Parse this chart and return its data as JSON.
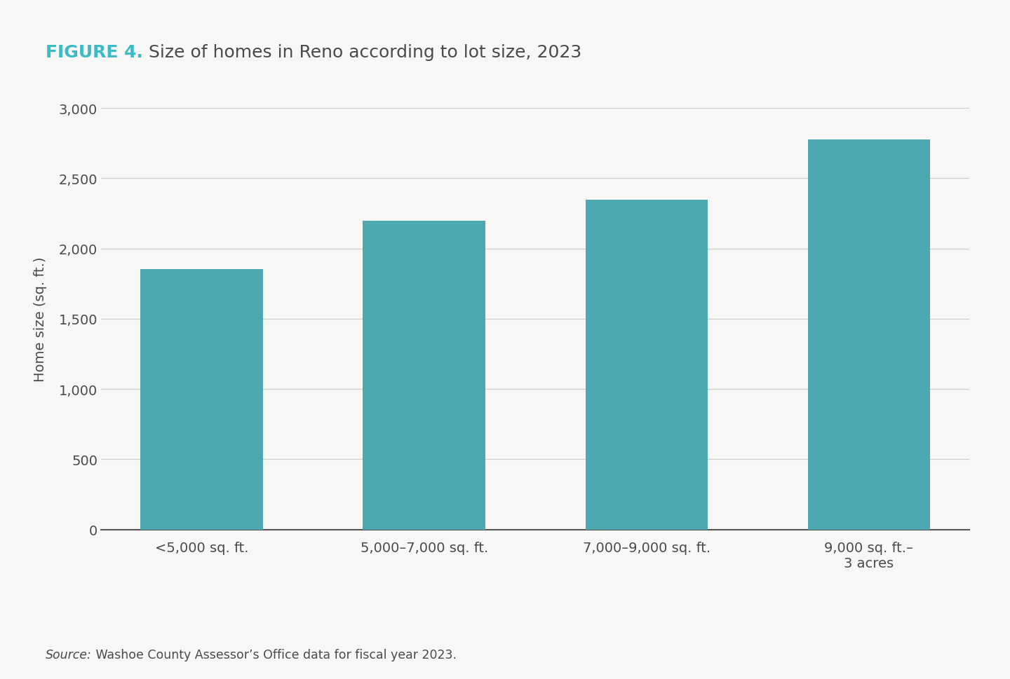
{
  "categories": [
    "<5,000 sq. ft.",
    "5,000–7,000 sq. ft.",
    "7,000–9,000 sq. ft.",
    "9,000 sq. ft.–\n3 acres"
  ],
  "values": [
    1855,
    2200,
    2350,
    2775
  ],
  "bar_color": "#4da8b0",
  "title_bold": "FIGURE 4.",
  "title_bold_color": "#3bbcc4",
  "title_rest": " Size of homes in Reno according to lot size, 2023",
  "title_rest_color": "#4a4a4a",
  "ylabel": "Home size (sq. ft.)",
  "ylim": [
    0,
    3000
  ],
  "yticks": [
    0,
    500,
    1000,
    1500,
    2000,
    2500,
    3000
  ],
  "source_italic": "Source:",
  "source_normal": " Washoe County Assessor’s Office data for fiscal year 2023.",
  "background_color": "#f7f7f5",
  "plot_bg_color": "#f7f7f5",
  "grid_color": "#cccccc",
  "title_fontsize": 18,
  "axis_label_fontsize": 14,
  "tick_fontsize": 14,
  "source_fontsize": 12.5,
  "bar_width": 0.55
}
